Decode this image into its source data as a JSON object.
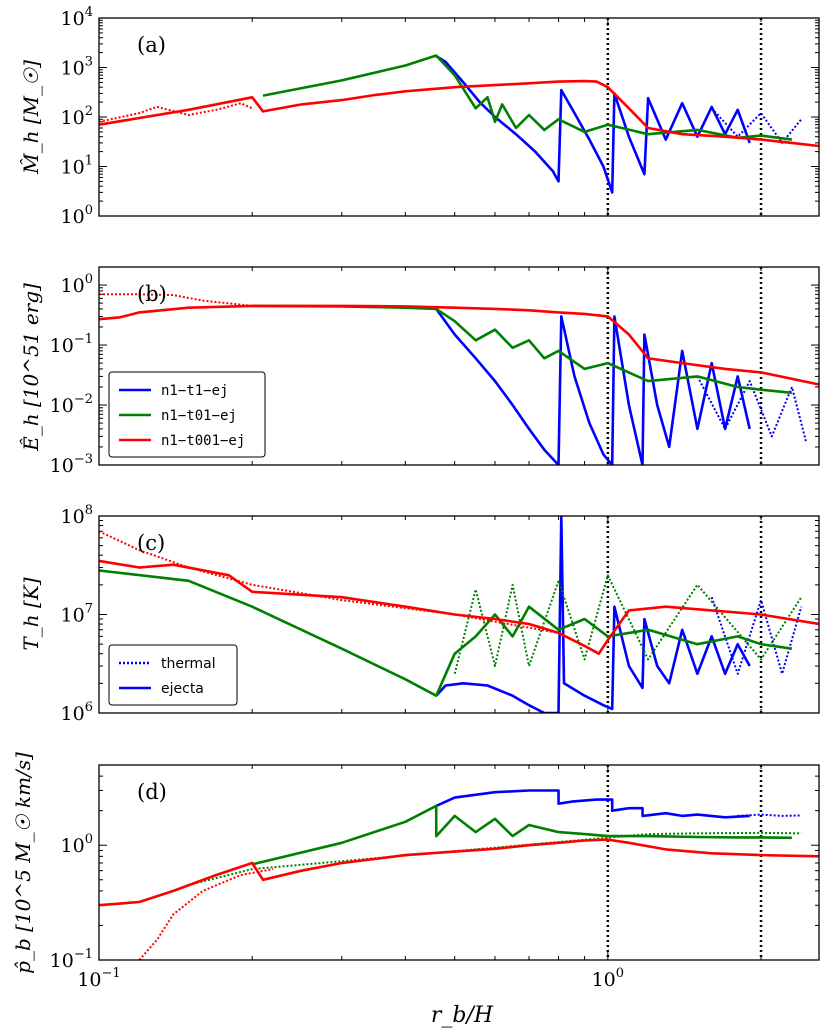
{
  "figure": {
    "xlabel": "r_b/H",
    "colors": {
      "blue": "#0000ff",
      "green": "#008000",
      "red": "#ff0000"
    }
  },
  "chart_data": [
    {
      "type": "line",
      "panel_label": "(a)",
      "ylabel": "M̂_h [M_☉]",
      "xscale": "log",
      "yscale": "log",
      "xlim": [
        0.1,
        2.6
      ],
      "ylim": [
        1,
        10000
      ],
      "x_tick_labels": [],
      "y_tick_labels": [
        {
          "value": 1,
          "base": "10",
          "exp": "0"
        },
        {
          "value": 10,
          "base": "10",
          "exp": "1"
        },
        {
          "value": 100,
          "base": "10",
          "exp": "2"
        },
        {
          "value": 1000,
          "base": "10",
          "exp": "3"
        },
        {
          "value": 10000,
          "base": "10",
          "exp": "4"
        }
      ],
      "vlines": [
        1.0,
        2.0
      ],
      "series": [
        {
          "name": "n1-t1-ej (ejecta)",
          "color": "blue",
          "style": "solid",
          "x": [
            0.46,
            0.48,
            0.52,
            0.56,
            0.6,
            0.66,
            0.72,
            0.78,
            0.8,
            0.81,
            0.86,
            0.92,
            0.98,
            1.02,
            1.03,
            1.1,
            1.18,
            1.2,
            1.3,
            1.4,
            1.5,
            1.6,
            1.7,
            1.8,
            1.9
          ],
          "y": [
            1700,
            1300,
            500,
            200,
            100,
            45,
            20,
            8,
            5,
            350,
            120,
            35,
            10,
            3,
            300,
            40,
            7,
            240,
            35,
            190,
            40,
            160,
            45,
            140,
            30
          ]
        },
        {
          "name": "n1-t1-ej (thermal)",
          "color": "blue",
          "style": "dotted",
          "x": [
            1.6,
            1.8,
            2.0,
            2.2,
            2.4
          ],
          "y": [
            150,
            40,
            120,
            30,
            90
          ]
        },
        {
          "name": "n1-t01-ej (ejecta)",
          "color": "green",
          "style": "solid",
          "x": [
            0.21,
            0.3,
            0.4,
            0.46,
            0.5,
            0.55,
            0.58,
            0.6,
            0.62,
            0.66,
            0.7,
            0.75,
            0.8,
            0.9,
            1.0,
            1.2,
            1.5,
            1.8,
            2.0,
            2.3
          ],
          "y": [
            270,
            550,
            1100,
            1750,
            700,
            150,
            250,
            80,
            180,
            60,
            110,
            55,
            90,
            50,
            70,
            45,
            55,
            38,
            42,
            35
          ]
        },
        {
          "name": "n1-t001-ej (ejecta)",
          "color": "red",
          "style": "solid",
          "x": [
            0.1,
            0.15,
            0.2,
            0.21,
            0.25,
            0.3,
            0.35,
            0.4,
            0.5,
            0.6,
            0.7,
            0.8,
            0.9,
            0.95,
            1.0,
            1.1,
            1.2,
            1.4,
            1.7,
            2.0,
            2.3,
            2.6
          ],
          "y": [
            70,
            140,
            250,
            130,
            180,
            220,
            280,
            330,
            400,
            440,
            480,
            520,
            530,
            520,
            400,
            150,
            60,
            45,
            40,
            35,
            30,
            26
          ]
        },
        {
          "name": "n1-t001-ej (thermal)",
          "color": "red",
          "style": "dotted",
          "x": [
            0.1,
            0.12,
            0.13,
            0.15,
            0.17,
            0.19,
            0.2
          ],
          "y": [
            80,
            120,
            160,
            110,
            140,
            190,
            150
          ]
        }
      ]
    },
    {
      "type": "line",
      "panel_label": "(b)",
      "ylabel": "Ê_h [10^51 erg]",
      "xscale": "log",
      "yscale": "log",
      "xlim": [
        0.1,
        2.6
      ],
      "ylim": [
        0.001,
        2
      ],
      "x_tick_labels": [],
      "y_tick_labels": [
        {
          "value": 0.001,
          "base": "10",
          "exp": "−3"
        },
        {
          "value": 0.01,
          "base": "10",
          "exp": "−2"
        },
        {
          "value": 0.1,
          "base": "10",
          "exp": "−1"
        },
        {
          "value": 1,
          "base": "10",
          "exp": "0"
        }
      ],
      "vlines": [
        1.0,
        2.0
      ],
      "legend": {
        "placement": "lower-left",
        "entries": [
          {
            "label": "n1−t1−ej",
            "color": "blue"
          },
          {
            "label": "n1−t01−ej",
            "color": "green"
          },
          {
            "label": "n1−t001−ej",
            "color": "red"
          }
        ]
      },
      "series": [
        {
          "name": "n1-t1-ej (ejecta)",
          "color": "blue",
          "style": "solid",
          "x": [
            0.46,
            0.5,
            0.55,
            0.6,
            0.65,
            0.7,
            0.75,
            0.8,
            0.81,
            0.86,
            0.92,
            0.98,
            1.02,
            1.03,
            1.1,
            1.17,
            1.18,
            1.25,
            1.32,
            1.4,
            1.5,
            1.6,
            1.7,
            1.8,
            1.9
          ],
          "y": [
            0.4,
            0.15,
            0.06,
            0.025,
            0.01,
            0.004,
            0.0018,
            0.001,
            0.3,
            0.03,
            0.005,
            0.0015,
            0.001,
            0.3,
            0.01,
            0.001,
            0.15,
            0.01,
            0.002,
            0.08,
            0.004,
            0.05,
            0.004,
            0.03,
            0.004
          ]
        },
        {
          "name": "n1-t1-ej (thermal)",
          "color": "blue",
          "style": "dotted",
          "x": [
            1.5,
            1.7,
            1.9,
            2.1,
            2.3,
            2.45
          ],
          "y": [
            0.03,
            0.004,
            0.025,
            0.003,
            0.02,
            0.0025
          ]
        },
        {
          "name": "n1-t01-ej (ejecta)",
          "color": "green",
          "style": "solid",
          "x": [
            0.2,
            0.3,
            0.4,
            0.46,
            0.5,
            0.55,
            0.6,
            0.65,
            0.7,
            0.75,
            0.8,
            0.9,
            1.0,
            1.2,
            1.5,
            1.8,
            2.0,
            2.3
          ],
          "y": [
            0.45,
            0.44,
            0.42,
            0.4,
            0.25,
            0.12,
            0.18,
            0.09,
            0.12,
            0.06,
            0.08,
            0.04,
            0.05,
            0.025,
            0.03,
            0.02,
            0.018,
            0.016
          ]
        },
        {
          "name": "n1-t001-ej (ejecta)",
          "color": "red",
          "style": "solid",
          "x": [
            0.1,
            0.11,
            0.12,
            0.15,
            0.2,
            0.3,
            0.4,
            0.5,
            0.6,
            0.7,
            0.8,
            0.9,
            1.0,
            1.1,
            1.2,
            1.4,
            1.7,
            2.0,
            2.6
          ],
          "y": [
            0.27,
            0.29,
            0.35,
            0.42,
            0.45,
            0.45,
            0.44,
            0.42,
            0.4,
            0.38,
            0.35,
            0.33,
            0.3,
            0.15,
            0.06,
            0.05,
            0.04,
            0.035,
            0.022
          ]
        },
        {
          "name": "n1-t001-ej (thermal)",
          "color": "red",
          "style": "dotted",
          "x": [
            0.1,
            0.12,
            0.14,
            0.16,
            0.2
          ],
          "y": [
            0.7,
            0.7,
            0.68,
            0.55,
            0.45
          ]
        }
      ]
    },
    {
      "type": "line",
      "panel_label": "(c)",
      "ylabel": "T_h [K]",
      "xscale": "log",
      "yscale": "log",
      "xlim": [
        0.1,
        2.6
      ],
      "ylim": [
        1000000,
        100000000
      ],
      "x_tick_labels": [],
      "y_tick_labels": [
        {
          "value": 1000000,
          "base": "10",
          "exp": "6"
        },
        {
          "value": 10000000,
          "base": "10",
          "exp": "7"
        },
        {
          "value": 100000000,
          "base": "10",
          "exp": "8"
        }
      ],
      "vlines": [
        1.0,
        2.0
      ],
      "legend": {
        "placement": "lower-left",
        "entries": [
          {
            "label": "thermal",
            "style": "dotted",
            "color": "blue"
          },
          {
            "label": "ejecta",
            "style": "solid",
            "color": "blue"
          }
        ]
      },
      "series": [
        {
          "name": "n1-t1-ej (ejecta)",
          "color": "blue",
          "style": "solid",
          "x": [
            0.46,
            0.48,
            0.52,
            0.58,
            0.65,
            0.7,
            0.75,
            0.8,
            0.81,
            0.82,
            0.9,
            0.98,
            1.02,
            1.03,
            1.1,
            1.17,
            1.18,
            1.25,
            1.32,
            1.4,
            1.5,
            1.6,
            1.7,
            1.8,
            1.9
          ],
          "y": [
            1500000,
            1900000,
            2000000,
            1900000,
            1500000,
            1200000,
            1000000,
            1000000,
            100000000,
            2000000,
            1500000,
            1200000,
            1100000,
            12000000,
            3000000,
            1800000,
            9000000,
            3000000,
            2000000,
            7000000,
            2500000,
            6000000,
            2500000,
            5000000,
            3000000
          ]
        },
        {
          "name": "n1-t1-ej (thermal)",
          "color": "blue",
          "style": "dotted",
          "x": [
            1.6,
            1.8,
            2.0,
            2.2,
            2.4
          ],
          "y": [
            15000000,
            2500000,
            14000000,
            2500000,
            12000000
          ]
        },
        {
          "name": "n1-t01-ej (ejecta)",
          "color": "green",
          "style": "solid",
          "x": [
            0.1,
            0.15,
            0.2,
            0.3,
            0.4,
            0.46,
            0.5,
            0.55,
            0.6,
            0.65,
            0.7,
            0.8,
            0.9,
            1.0,
            1.2,
            1.5,
            1.8,
            2.0,
            2.3
          ],
          "y": [
            28000000,
            22000000,
            12000000,
            4500000,
            2200000,
            1500000,
            4000000,
            6000000,
            10000000,
            6000000,
            12000000,
            7000000,
            9000000,
            6000000,
            7000000,
            5000000,
            6000000,
            5000000,
            4500000
          ]
        },
        {
          "name": "n1-t01-ej (thermal)",
          "color": "green",
          "style": "dotted",
          "x": [
            0.5,
            0.55,
            0.6,
            0.65,
            0.7,
            0.8,
            0.9,
            1.0,
            1.2,
            1.5,
            2.0,
            2.4
          ],
          "y": [
            2500000,
            18000000,
            3000000,
            20000000,
            3000000,
            22000000,
            3500000,
            25000000,
            3500000,
            20000000,
            3500000,
            15000000
          ]
        },
        {
          "name": "n1-t001-ej (ejecta)",
          "color": "red",
          "style": "solid",
          "x": [
            0.1,
            0.12,
            0.14,
            0.18,
            0.2,
            0.3,
            0.4,
            0.5,
            0.6,
            0.7,
            0.8,
            0.9,
            0.96,
            1.0,
            1.1,
            1.3,
            1.6,
            2.0,
            2.6
          ],
          "y": [
            35000000,
            30000000,
            32000000,
            25000000,
            17000000,
            15000000,
            12000000,
            10000000,
            9000000,
            8000000,
            6500000,
            4800000,
            4000000,
            5500000,
            11000000,
            12000000,
            11000000,
            10000000,
            8000000
          ]
        },
        {
          "name": "n1-t001-ej (thermal)",
          "color": "red",
          "style": "dotted",
          "x": [
            0.1,
            0.12,
            0.15,
            0.2,
            0.3,
            0.5,
            0.8
          ],
          "y": [
            70000000,
            45000000,
            30000000,
            20000000,
            14000000,
            10000000,
            6500000
          ]
        }
      ]
    },
    {
      "type": "line",
      "panel_label": "(d)",
      "ylabel": "p̂_b [10^5 M_☉ km/s]",
      "xscale": "log",
      "yscale": "log",
      "xlim": [
        0.1,
        2.6
      ],
      "ylim": [
        0.1,
        5
      ],
      "x_tick_labels": [
        {
          "value": 0.1,
          "base": "10",
          "exp": "−1"
        },
        {
          "value": 1,
          "base": "10",
          "exp": "0"
        }
      ],
      "y_tick_labels": [
        {
          "value": 0.1,
          "base": "10",
          "exp": "−1"
        },
        {
          "value": 1,
          "base": "10",
          "exp": "0"
        }
      ],
      "vlines": [
        1.0,
        2.0
      ],
      "series": [
        {
          "name": "n1-t1-ej (ejecta)",
          "color": "blue",
          "style": "solid",
          "x": [
            0.46,
            0.5,
            0.6,
            0.7,
            0.8,
            0.8001,
            0.85,
            0.95,
            1.02,
            1.0201,
            1.1,
            1.17,
            1.1701,
            1.3,
            1.4,
            1.5,
            1.7,
            1.9
          ],
          "y": [
            2.2,
            2.6,
            2.9,
            3.0,
            3.0,
            2.3,
            2.4,
            2.5,
            2.5,
            2.0,
            2.1,
            2.1,
            1.8,
            1.9,
            1.8,
            1.85,
            1.75,
            1.8
          ]
        },
        {
          "name": "n1-t1-ej (thermal)",
          "color": "blue",
          "style": "dotted",
          "x": [
            1.8,
            2.0,
            2.2,
            2.4
          ],
          "y": [
            1.8,
            1.85,
            1.8,
            1.82
          ]
        },
        {
          "name": "n1-t01-ej (ejecta)",
          "color": "green",
          "style": "solid",
          "x": [
            0.2,
            0.3,
            0.4,
            0.46,
            0.4601,
            0.5,
            0.55,
            0.6,
            0.65,
            0.7,
            0.8,
            0.9,
            1.0,
            1.2,
            1.5,
            1.8,
            2.0,
            2.3
          ],
          "y": [
            0.68,
            1.05,
            1.6,
            2.2,
            1.2,
            1.8,
            1.3,
            1.7,
            1.2,
            1.5,
            1.3,
            1.25,
            1.2,
            1.2,
            1.18,
            1.17,
            1.17,
            1.16
          ]
        },
        {
          "name": "n1-t01-ej (thermal)",
          "color": "green",
          "style": "dotted",
          "x": [
            0.15,
            0.2,
            1.2,
            1.5,
            2.0,
            2.4
          ],
          "y": [
            0.45,
            0.62,
            1.25,
            1.27,
            1.28,
            1.27
          ]
        },
        {
          "name": "n1-t001-ej (ejecta)",
          "color": "red",
          "style": "solid",
          "x": [
            0.1,
            0.12,
            0.14,
            0.17,
            0.2,
            0.21,
            0.25,
            0.3,
            0.4,
            0.5,
            0.6,
            0.7,
            0.8,
            0.9,
            1.0,
            1.1,
            1.3,
            1.6,
            2.0,
            2.6
          ],
          "y": [
            0.3,
            0.32,
            0.4,
            0.55,
            0.7,
            0.5,
            0.6,
            0.7,
            0.82,
            0.88,
            0.93,
            1.0,
            1.05,
            1.1,
            1.12,
            1.05,
            0.92,
            0.85,
            0.82,
            0.8
          ]
        },
        {
          "name": "n1-t001-ej (thermal)",
          "color": "red",
          "style": "dotted",
          "x": [
            0.12,
            0.13,
            0.14,
            0.16,
            0.19,
            0.22
          ],
          "y": [
            0.1,
            0.15,
            0.25,
            0.4,
            0.55,
            0.62
          ]
        }
      ]
    }
  ]
}
